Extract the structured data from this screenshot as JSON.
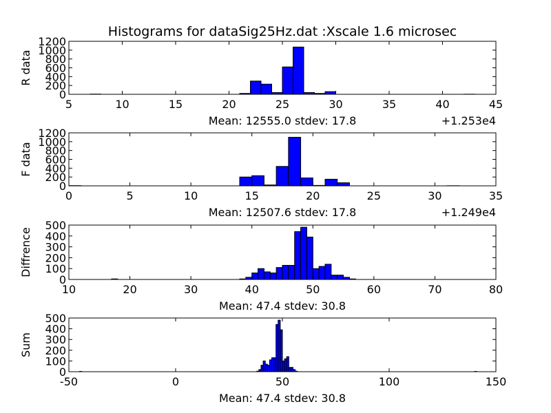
{
  "title": "Histograms for dataSig25Hz.dat :Xscale 1.6 microsec",
  "colors": {
    "bar_fill": "#0000ff",
    "bar_edge": "#000000",
    "axes": "#000000",
    "background": "#ffffff"
  },
  "chart_data": [
    {
      "type": "bar",
      "ylabel": "R data",
      "xlim": [
        5,
        45
      ],
      "ylim": [
        0,
        1200
      ],
      "xticks": [
        5,
        10,
        15,
        20,
        25,
        30,
        35,
        40,
        45
      ],
      "yticks": [
        0,
        200,
        400,
        600,
        800,
        1000,
        1200
      ],
      "offset_text": "+1.253e4",
      "stat_text": "Mean: 12555.0  stdev: 17.8",
      "bin_width": 1,
      "bars": [
        {
          "x": 7,
          "y": 5
        },
        {
          "x": 21,
          "y": 20
        },
        {
          "x": 22,
          "y": 300
        },
        {
          "x": 23,
          "y": 230
        },
        {
          "x": 24,
          "y": 40
        },
        {
          "x": 25,
          "y": 620
        },
        {
          "x": 26,
          "y": 1070
        },
        {
          "x": 27,
          "y": 40
        },
        {
          "x": 28,
          "y": 20
        },
        {
          "x": 29,
          "y": 60
        },
        {
          "x": 42,
          "y": 3
        }
      ]
    },
    {
      "type": "bar",
      "ylabel": "F data",
      "xlim": [
        0,
        35
      ],
      "ylim": [
        0,
        1200
      ],
      "xticks": [
        0,
        5,
        10,
        15,
        20,
        25,
        30,
        35
      ],
      "yticks": [
        0,
        200,
        400,
        600,
        800,
        1000,
        1200
      ],
      "offset_text": "+1.249e4",
      "stat_text": "Mean: 12507.6  stdev: 17.8",
      "bin_width": 1,
      "bars": [
        {
          "x": 0,
          "y": 5
        },
        {
          "x": 14,
          "y": 200
        },
        {
          "x": 15,
          "y": 230
        },
        {
          "x": 16,
          "y": 20
        },
        {
          "x": 17,
          "y": 440
        },
        {
          "x": 18,
          "y": 1100
        },
        {
          "x": 19,
          "y": 180
        },
        {
          "x": 20,
          "y": 10
        },
        {
          "x": 21,
          "y": 150
        },
        {
          "x": 22,
          "y": 70
        },
        {
          "x": 31,
          "y": 3
        }
      ]
    },
    {
      "type": "bar",
      "ylabel": "Diffrence",
      "xlim": [
        10,
        80
      ],
      "ylim": [
        0,
        500
      ],
      "xticks": [
        10,
        20,
        30,
        40,
        50,
        60,
        70,
        80
      ],
      "yticks": [
        0,
        100,
        200,
        300,
        400,
        500
      ],
      "offset_text": "",
      "stat_text": "Mean: 47.4  stdev: 30.8",
      "bin_width": 1,
      "bars": [
        {
          "x": 17,
          "y": 5
        },
        {
          "x": 38,
          "y": 5
        },
        {
          "x": 39,
          "y": 20
        },
        {
          "x": 40,
          "y": 60
        },
        {
          "x": 41,
          "y": 100
        },
        {
          "x": 42,
          "y": 70
        },
        {
          "x": 43,
          "y": 60
        },
        {
          "x": 44,
          "y": 110
        },
        {
          "x": 45,
          "y": 130
        },
        {
          "x": 46,
          "y": 130
        },
        {
          "x": 47,
          "y": 440
        },
        {
          "x": 48,
          "y": 480
        },
        {
          "x": 49,
          "y": 390
        },
        {
          "x": 50,
          "y": 100
        },
        {
          "x": 51,
          "y": 120
        },
        {
          "x": 52,
          "y": 140
        },
        {
          "x": 53,
          "y": 40
        },
        {
          "x": 54,
          "y": 40
        },
        {
          "x": 55,
          "y": 20
        },
        {
          "x": 56,
          "y": 5
        }
      ]
    },
    {
      "type": "bar",
      "ylabel": "Sum",
      "xlim": [
        -50,
        150
      ],
      "ylim": [
        0,
        500
      ],
      "xticks": [
        -50,
        0,
        50,
        100,
        150
      ],
      "yticks": [
        0,
        100,
        200,
        300,
        400,
        500
      ],
      "offset_text": "",
      "stat_text": "Mean: 47.4  stdev: 30.8",
      "bin_width": 1,
      "bars": [
        {
          "x": -45,
          "y": 3
        },
        {
          "x": 38,
          "y": 5
        },
        {
          "x": 39,
          "y": 20
        },
        {
          "x": 40,
          "y": 60
        },
        {
          "x": 41,
          "y": 100
        },
        {
          "x": 42,
          "y": 70
        },
        {
          "x": 43,
          "y": 60
        },
        {
          "x": 44,
          "y": 110
        },
        {
          "x": 45,
          "y": 130
        },
        {
          "x": 46,
          "y": 130
        },
        {
          "x": 47,
          "y": 440
        },
        {
          "x": 48,
          "y": 480
        },
        {
          "x": 49,
          "y": 390
        },
        {
          "x": 50,
          "y": 100
        },
        {
          "x": 51,
          "y": 120
        },
        {
          "x": 52,
          "y": 140
        },
        {
          "x": 53,
          "y": 40
        },
        {
          "x": 54,
          "y": 40
        },
        {
          "x": 55,
          "y": 20
        },
        {
          "x": 56,
          "y": 5
        },
        {
          "x": 140,
          "y": 3
        }
      ]
    }
  ]
}
